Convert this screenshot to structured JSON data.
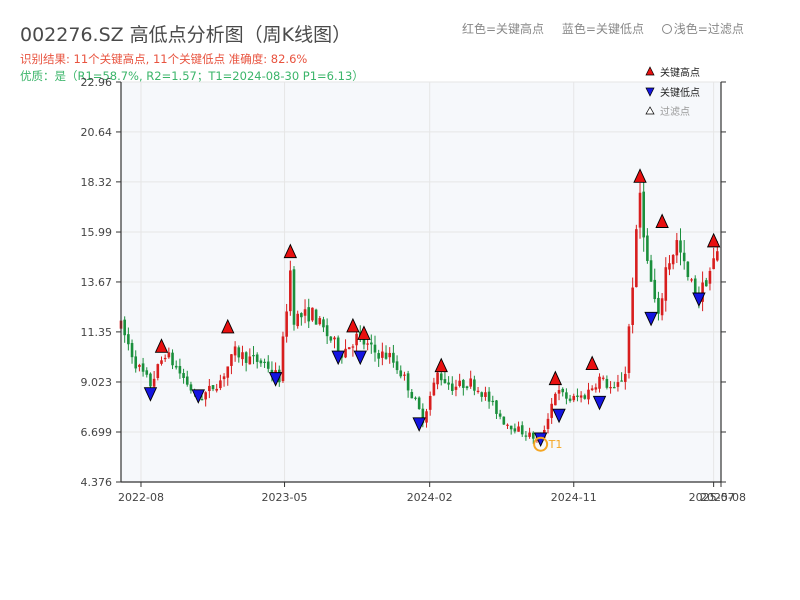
{
  "header": {
    "title": "002276.SZ 高低点分析图（周K线图）",
    "result_line": "识别结果: 11个关键高点, 11个关键低点  准确度: 82.6%",
    "quality_line": "优质：是（R1=58.7%, R2=1.57；T1=2024-08-30 P1=6.13）"
  },
  "top_legend": {
    "red": "红色=关键高点",
    "blue": "蓝色=关键低点",
    "light": "浅色=过滤点"
  },
  "colors": {
    "up": "#d81e1e",
    "down": "#1a8f3c",
    "high_marker": "#e81010",
    "low_marker": "#1515e0",
    "highlight": "#f5a623",
    "axis": "#333333",
    "grid": "#e6e6e6",
    "plot_bg": "#f6f8fb"
  },
  "chart_data": {
    "type": "candlestick",
    "title": "002276.SZ 高低点分析图（周K线图）",
    "ylim": [
      4.376,
      22.96
    ],
    "y_ticks": [
      "4.376",
      "6.699",
      "9.023",
      "11.35",
      "13.67",
      "15.99",
      "18.32",
      "20.64",
      "22.96"
    ],
    "x_ticks": [
      "2022-08",
      "2023-05",
      "2024-02",
      "2024-11",
      "2025-07",
      "2025-08"
    ],
    "legend": {
      "items": [
        "关键高点",
        "关键低点",
        "过滤点"
      ],
      "placement": "top-right"
    },
    "price_path": [
      [
        "2022-06-24",
        11.6
      ],
      [
        "2022-07-22",
        9.9
      ],
      [
        "2022-08-19",
        8.9
      ],
      [
        "2022-09-16",
        10.4
      ],
      [
        "2022-10-21",
        9.2
      ],
      [
        "2022-11-18",
        8.2
      ],
      [
        "2022-12-30",
        9.1
      ],
      [
        "2023-01-27",
        10.4
      ],
      [
        "2023-02-24",
        10.1
      ],
      [
        "2023-03-24",
        9.9
      ],
      [
        "2023-04-21",
        9.2
      ],
      [
        "2023-05-12",
        14.2
      ],
      [
        "2023-05-19",
        12.0
      ],
      [
        "2023-06-23",
        12.2
      ],
      [
        "2023-07-21",
        11.2
      ],
      [
        "2023-08-18",
        10.4
      ],
      [
        "2023-09-15",
        11.1
      ],
      [
        "2023-10-20",
        10.4
      ],
      [
        "2023-11-17",
        10.2
      ],
      [
        "2023-12-15",
        9.2
      ],
      [
        "2024-01-19",
        7.3
      ],
      [
        "2024-02-16",
        9.4
      ],
      [
        "2024-03-15",
        8.8
      ],
      [
        "2024-04-19",
        9.0
      ],
      [
        "2024-05-17",
        8.4
      ],
      [
        "2024-06-21",
        7.2
      ],
      [
        "2024-07-26",
        6.7
      ],
      [
        "2024-08-30",
        6.3
      ],
      [
        "2024-09-27",
        8.6
      ],
      [
        "2024-10-25",
        8.2
      ],
      [
        "2024-11-22",
        8.4
      ],
      [
        "2024-12-20",
        9.2
      ],
      [
        "2025-01-17",
        8.6
      ],
      [
        "2025-02-07",
        9.5
      ],
      [
        "2025-03-07",
        17.8
      ],
      [
        "2025-03-21",
        14.5
      ],
      [
        "2025-04-11",
        11.9
      ],
      [
        "2025-04-25",
        14.3
      ],
      [
        "2025-05-16",
        15.5
      ],
      [
        "2025-06-06",
        13.8
      ],
      [
        "2025-06-27",
        13.0
      ],
      [
        "2025-07-18",
        14.2
      ],
      [
        "2025-08-01",
        15.0
      ]
    ],
    "key_highs": [
      {
        "date": "2022-09-09",
        "price": 10.4
      },
      {
        "date": "2023-01-13",
        "price": 11.3
      },
      {
        "date": "2023-05-12",
        "price": 14.8
      },
      {
        "date": "2023-09-08",
        "price": 11.35
      },
      {
        "date": "2023-09-29",
        "price": 11.0
      },
      {
        "date": "2024-02-23",
        "price": 9.5
      },
      {
        "date": "2024-09-27",
        "price": 8.9
      },
      {
        "date": "2024-12-06",
        "price": 9.6
      },
      {
        "date": "2025-03-07",
        "price": 18.3
      },
      {
        "date": "2025-04-18",
        "price": 16.2
      },
      {
        "date": "2025-07-25",
        "price": 15.3
      }
    ],
    "key_lows": [
      {
        "date": "2022-08-19",
        "price": 8.2
      },
      {
        "date": "2022-11-18",
        "price": 8.1
      },
      {
        "date": "2023-04-14",
        "price": 8.9
      },
      {
        "date": "2023-08-11",
        "price": 9.9
      },
      {
        "date": "2023-09-22",
        "price": 9.9
      },
      {
        "date": "2024-01-12",
        "price": 6.8
      },
      {
        "date": "2024-08-30",
        "price": 6.1
      },
      {
        "date": "2024-10-04",
        "price": 7.2
      },
      {
        "date": "2024-12-20",
        "price": 7.8
      },
      {
        "date": "2025-03-28",
        "price": 11.7
      },
      {
        "date": "2025-06-27",
        "price": 12.6
      }
    ],
    "highlight": {
      "date": "2024-08-30",
      "price": 6.13,
      "label": "T1"
    }
  }
}
